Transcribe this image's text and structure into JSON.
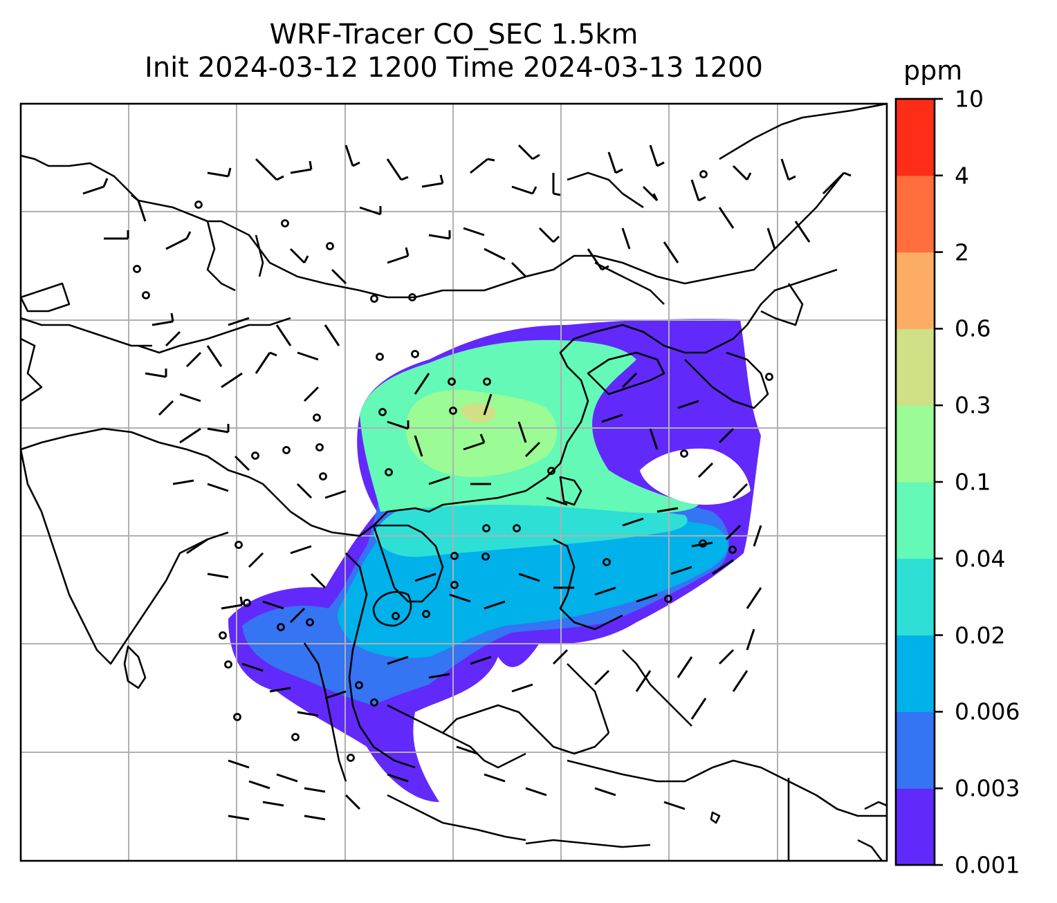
{
  "title": {
    "line1": "WRF-Tracer CO_SEC 1.5km",
    "line2": "Init 2024-03-12 1200 Time 2024-03-13 1200"
  },
  "colorbar": {
    "unit": "ppm",
    "levels": [
      "0.001",
      "0.003",
      "0.006",
      "0.02",
      "0.04",
      "0.1",
      "0.3",
      "0.6",
      "2",
      "4",
      "10"
    ],
    "colors": [
      "#6229fb",
      "#3574f3",
      "#00b1ea",
      "#2edfd6",
      "#64f9b6",
      "#9bfb95",
      "#cfe087",
      "#fdad63",
      "#ff6e3c",
      "#fe2d18"
    ]
  },
  "map": {
    "gridline_color": "#b0b0b0",
    "coastline_color": "#000000",
    "tracer_shading": "CO_SEC",
    "wind_barbs": "present"
  }
}
